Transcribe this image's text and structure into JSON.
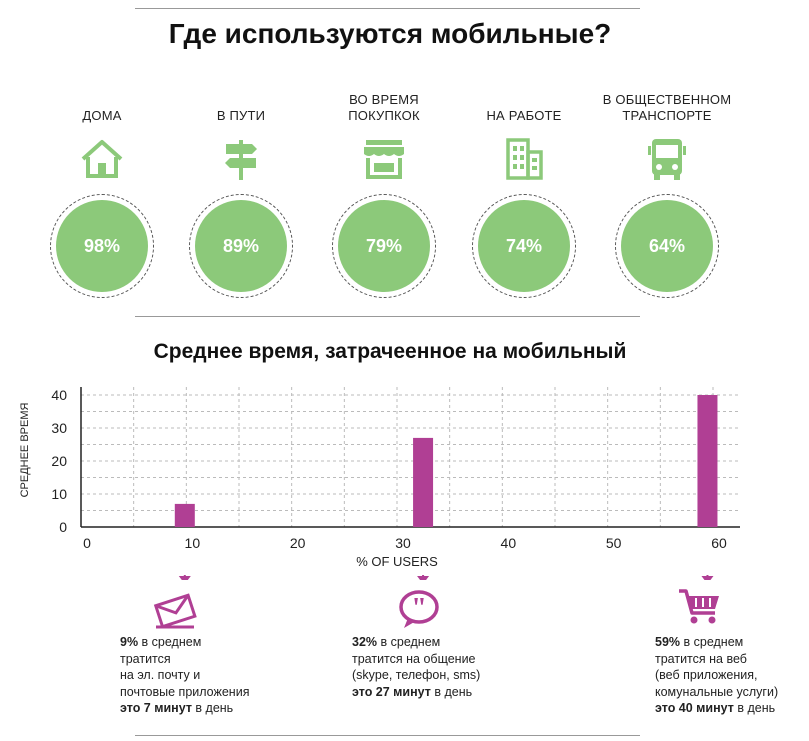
{
  "title": "Где используются мобильные?",
  "places": [
    {
      "label_line1": "",
      "label_line2": "ДОМА",
      "percent": "98%",
      "icon": "house-icon"
    },
    {
      "label_line1": "",
      "label_line2": "В ПУТИ",
      "percent": "89%",
      "icon": "signpost-icon"
    },
    {
      "label_line1": "ВО ВРЕМЯ",
      "label_line2": "ПОКУПКОК",
      "percent": "79%",
      "icon": "shop-icon"
    },
    {
      "label_line1": "",
      "label_line2": "НА РАБОТЕ",
      "percent": "74%",
      "icon": "office-building-icon"
    },
    {
      "label_line1": "В ОБЩЕСТВЕННОМ",
      "label_line2": "ТРАНСПОРТЕ",
      "percent": "64%",
      "icon": "bus-icon"
    }
  ],
  "colors": {
    "green": "#8cc97a",
    "magenta": "#b03f94",
    "grid": "#bbbbbb"
  },
  "chart_data": {
    "type": "bar",
    "title": "Среднее время, затрачееннoе на мобильный",
    "xlabel": "% OF USERS",
    "ylabel": "СРЕДНЕЕ ВРЕМЯ",
    "x": [
      9,
      32,
      59
    ],
    "values": [
      7,
      27,
      40
    ],
    "xlim": [
      0,
      60
    ],
    "ylim": [
      0,
      40
    ],
    "xticks": [
      "0",
      "10",
      "20",
      "30",
      "40",
      "50",
      "60"
    ],
    "yticks": [
      "0",
      "10",
      "20",
      "30",
      "40"
    ],
    "grid": true
  },
  "callouts": [
    {
      "icon": "envelope-icon",
      "line1_bold": "9%",
      "line1_rest": " в среднем",
      "line2": "тратится",
      "line3": "на эл. почту и",
      "line4": "почтовые приложения",
      "line5_bold": "это 7 минут",
      "line5_rest": " в день"
    },
    {
      "icon": "speech-bubble-icon",
      "line1_bold": "32%",
      "line1_rest": " в среднем",
      "line2": "тратится на общение",
      "line3": "(skype, телефон, sms)",
      "line4": "",
      "line5_bold": "это 27 минут",
      "line5_rest": " в день"
    },
    {
      "icon": "shopping-cart-icon",
      "line1_bold": "59%",
      "line1_rest": " в среднем",
      "line2": "тратится на веб",
      "line3": "(веб приложения,",
      "line4": "комунальные услуги)",
      "line5_bold": "это 40 минут",
      "line5_rest": " в день"
    }
  ]
}
